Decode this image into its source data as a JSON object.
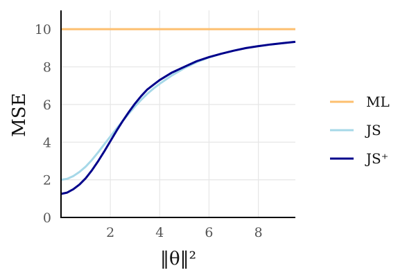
{
  "chart_data": {
    "type": "line",
    "title": "",
    "xlabel": "‖θ‖²",
    "ylabel": "MSE",
    "xlim": [
      0,
      9.5
    ],
    "ylim": [
      0,
      11
    ],
    "xticks": [
      2,
      4,
      6,
      8
    ],
    "yticks": [
      0,
      2,
      4,
      6,
      8,
      10
    ],
    "grid": true,
    "legend_position": "right",
    "series": [
      {
        "name": "ML",
        "color": "#fdbf6f",
        "x": [
          0,
          9.5
        ],
        "y": [
          10,
          10
        ]
      },
      {
        "name": "JS",
        "color": "#a6d8e8",
        "x": [
          0,
          0.25,
          0.5,
          0.75,
          1,
          1.25,
          1.5,
          1.75,
          2,
          2.25,
          2.5,
          2.75,
          3,
          3.25,
          3.5,
          3.75,
          4,
          4.5,
          5,
          5.5,
          6,
          6.5,
          7,
          7.5,
          8,
          8.5,
          9,
          9.5
        ],
        "y": [
          2.0,
          2.05,
          2.2,
          2.42,
          2.7,
          3.05,
          3.45,
          3.88,
          4.3,
          4.72,
          5.12,
          5.52,
          5.9,
          6.25,
          6.57,
          6.85,
          7.1,
          7.55,
          7.93,
          8.25,
          8.5,
          8.7,
          8.86,
          9.0,
          9.1,
          9.19,
          9.26,
          9.33
        ]
      },
      {
        "name": "JS⁺",
        "color": "#00008b",
        "x": [
          0,
          0.25,
          0.5,
          0.75,
          1,
          1.25,
          1.5,
          1.75,
          2,
          2.25,
          2.5,
          2.75,
          3,
          3.25,
          3.5,
          3.75,
          4,
          4.5,
          5,
          5.5,
          6,
          6.5,
          7,
          7.5,
          8,
          8.5,
          9,
          9.5
        ],
        "y": [
          1.25,
          1.32,
          1.5,
          1.75,
          2.08,
          2.5,
          2.98,
          3.5,
          4.05,
          4.6,
          5.12,
          5.6,
          6.05,
          6.45,
          6.8,
          7.05,
          7.3,
          7.7,
          8.0,
          8.3,
          8.52,
          8.7,
          8.86,
          9.0,
          9.1,
          9.19,
          9.26,
          9.33
        ]
      }
    ]
  }
}
